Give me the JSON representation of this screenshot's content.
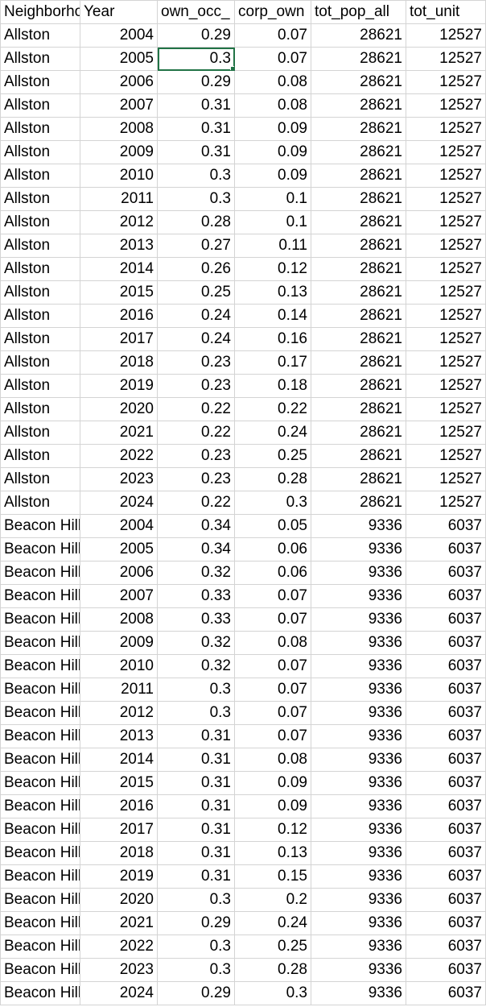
{
  "columns": [
    "Neighborhood",
    "Year",
    "own_occ_",
    "corp_own",
    "tot_pop_all",
    "tot_unit"
  ],
  "selected_cell": {
    "row": 1,
    "col": 2
  },
  "rows": [
    [
      "Allston",
      "2004",
      "0.29",
      "0.07",
      "28621",
      "12527"
    ],
    [
      "Allston",
      "2005",
      "0.3",
      "0.07",
      "28621",
      "12527"
    ],
    [
      "Allston",
      "2006",
      "0.29",
      "0.08",
      "28621",
      "12527"
    ],
    [
      "Allston",
      "2007",
      "0.31",
      "0.08",
      "28621",
      "12527"
    ],
    [
      "Allston",
      "2008",
      "0.31",
      "0.09",
      "28621",
      "12527"
    ],
    [
      "Allston",
      "2009",
      "0.31",
      "0.09",
      "28621",
      "12527"
    ],
    [
      "Allston",
      "2010",
      "0.3",
      "0.09",
      "28621",
      "12527"
    ],
    [
      "Allston",
      "2011",
      "0.3",
      "0.1",
      "28621",
      "12527"
    ],
    [
      "Allston",
      "2012",
      "0.28",
      "0.1",
      "28621",
      "12527"
    ],
    [
      "Allston",
      "2013",
      "0.27",
      "0.11",
      "28621",
      "12527"
    ],
    [
      "Allston",
      "2014",
      "0.26",
      "0.12",
      "28621",
      "12527"
    ],
    [
      "Allston",
      "2015",
      "0.25",
      "0.13",
      "28621",
      "12527"
    ],
    [
      "Allston",
      "2016",
      "0.24",
      "0.14",
      "28621",
      "12527"
    ],
    [
      "Allston",
      "2017",
      "0.24",
      "0.16",
      "28621",
      "12527"
    ],
    [
      "Allston",
      "2018",
      "0.23",
      "0.17",
      "28621",
      "12527"
    ],
    [
      "Allston",
      "2019",
      "0.23",
      "0.18",
      "28621",
      "12527"
    ],
    [
      "Allston",
      "2020",
      "0.22",
      "0.22",
      "28621",
      "12527"
    ],
    [
      "Allston",
      "2021",
      "0.22",
      "0.24",
      "28621",
      "12527"
    ],
    [
      "Allston",
      "2022",
      "0.23",
      "0.25",
      "28621",
      "12527"
    ],
    [
      "Allston",
      "2023",
      "0.23",
      "0.28",
      "28621",
      "12527"
    ],
    [
      "Allston",
      "2024",
      "0.22",
      "0.3",
      "28621",
      "12527"
    ],
    [
      "Beacon Hill",
      "2004",
      "0.34",
      "0.05",
      "9336",
      "6037"
    ],
    [
      "Beacon Hill",
      "2005",
      "0.34",
      "0.06",
      "9336",
      "6037"
    ],
    [
      "Beacon Hill",
      "2006",
      "0.32",
      "0.06",
      "9336",
      "6037"
    ],
    [
      "Beacon Hill",
      "2007",
      "0.33",
      "0.07",
      "9336",
      "6037"
    ],
    [
      "Beacon Hill",
      "2008",
      "0.33",
      "0.07",
      "9336",
      "6037"
    ],
    [
      "Beacon Hill",
      "2009",
      "0.32",
      "0.08",
      "9336",
      "6037"
    ],
    [
      "Beacon Hill",
      "2010",
      "0.32",
      "0.07",
      "9336",
      "6037"
    ],
    [
      "Beacon Hill",
      "2011",
      "0.3",
      "0.07",
      "9336",
      "6037"
    ],
    [
      "Beacon Hill",
      "2012",
      "0.3",
      "0.07",
      "9336",
      "6037"
    ],
    [
      "Beacon Hill",
      "2013",
      "0.31",
      "0.07",
      "9336",
      "6037"
    ],
    [
      "Beacon Hill",
      "2014",
      "0.31",
      "0.08",
      "9336",
      "6037"
    ],
    [
      "Beacon Hill",
      "2015",
      "0.31",
      "0.09",
      "9336",
      "6037"
    ],
    [
      "Beacon Hill",
      "2016",
      "0.31",
      "0.09",
      "9336",
      "6037"
    ],
    [
      "Beacon Hill",
      "2017",
      "0.31",
      "0.12",
      "9336",
      "6037"
    ],
    [
      "Beacon Hill",
      "2018",
      "0.31",
      "0.13",
      "9336",
      "6037"
    ],
    [
      "Beacon Hill",
      "2019",
      "0.31",
      "0.15",
      "9336",
      "6037"
    ],
    [
      "Beacon Hill",
      "2020",
      "0.3",
      "0.2",
      "9336",
      "6037"
    ],
    [
      "Beacon Hill",
      "2021",
      "0.29",
      "0.24",
      "9336",
      "6037"
    ],
    [
      "Beacon Hill",
      "2022",
      "0.3",
      "0.25",
      "9336",
      "6037"
    ],
    [
      "Beacon Hill",
      "2023",
      "0.3",
      "0.28",
      "9336",
      "6037"
    ],
    [
      "Beacon Hill",
      "2024",
      "0.29",
      "0.3",
      "9336",
      "6037"
    ]
  ]
}
